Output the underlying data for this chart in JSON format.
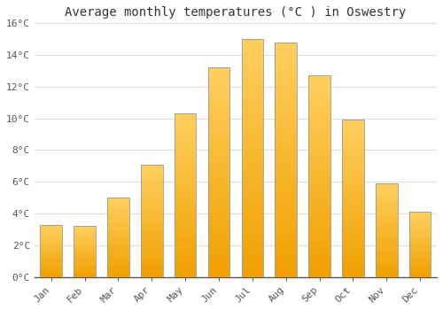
{
  "title": "Average monthly temperatures (°C ) in Oswestry",
  "months": [
    "Jan",
    "Feb",
    "Mar",
    "Apr",
    "May",
    "Jun",
    "Jul",
    "Aug",
    "Sep",
    "Oct",
    "Nov",
    "Dec"
  ],
  "temperatures": [
    3.3,
    3.2,
    5.0,
    7.1,
    10.3,
    13.2,
    15.0,
    14.8,
    12.7,
    9.9,
    5.9,
    4.1
  ],
  "bar_color": "#FFA500",
  "bar_edge_color": "#999999",
  "ylim": [
    0,
    16
  ],
  "yticks": [
    0,
    2,
    4,
    6,
    8,
    10,
    12,
    14,
    16
  ],
  "ytick_labels": [
    "0°C",
    "2°C",
    "4°C",
    "6°C",
    "8°C",
    "10°C",
    "12°C",
    "14°C",
    "16°C"
  ],
  "background_color": "#FFFFFF",
  "grid_color": "#DDDDDD",
  "title_fontsize": 10,
  "tick_fontsize": 8,
  "bar_width": 0.65
}
